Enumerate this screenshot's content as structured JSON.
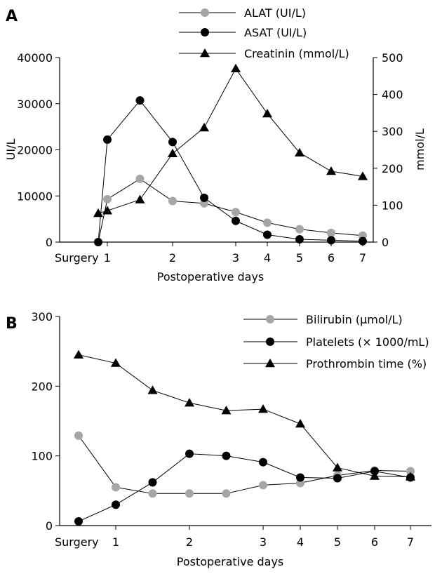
{
  "chart_data": [
    {
      "panel": "A",
      "type": "line",
      "x_tick_labels": [
        "Surgery",
        "1",
        "2",
        "3",
        "4",
        "5",
        "6",
        "7"
      ],
      "xlabel": "Postoperative days",
      "ylabel_left": "UI/L",
      "ylabel_right": "mmol/L",
      "ylim_left": [
        0,
        40000
      ],
      "ylim_right": [
        0,
        500
      ],
      "yticks_left": [
        "0",
        "10000",
        "20000",
        "30000",
        "40000"
      ],
      "yticks_right": [
        "0",
        "100",
        "200",
        "300",
        "400",
        "500"
      ],
      "legend_position": "top",
      "series": [
        {
          "name": "ALAT (UI/L)",
          "axis": "left",
          "marker": "circle",
          "color": "#a6a6a6",
          "x": [
            0,
            1,
            1.5,
            2,
            2.5,
            3,
            4,
            5,
            6,
            7
          ],
          "y": [
            0,
            9300,
            13700,
            8900,
            8400,
            6500,
            4200,
            2800,
            2000,
            1400
          ]
        },
        {
          "name": "ASAT (UI/L)",
          "axis": "left",
          "marker": "circle",
          "color": "#000000",
          "x": [
            0,
            1,
            1.5,
            2,
            2.5,
            3,
            4,
            5,
            6,
            7
          ],
          "y": [
            0,
            22200,
            30700,
            21700,
            9600,
            4600,
            1600,
            600,
            400,
            200
          ]
        },
        {
          "name": "Creatinin (mmol/L)",
          "axis": "right",
          "marker": "triangle",
          "color": "#000000",
          "x": [
            0,
            1,
            1.5,
            2,
            2.5,
            3,
            4,
            5,
            6,
            7
          ],
          "y": [
            78,
            85,
            115,
            240,
            310,
            470,
            348,
            242,
            192,
            178
          ]
        }
      ]
    },
    {
      "panel": "B",
      "type": "line",
      "x_tick_labels": [
        "Surgery",
        "1",
        "2",
        "3",
        "4",
        "5",
        "6",
        "7"
      ],
      "xlabel": "Postoperative days",
      "ylabel": "",
      "ylim": [
        0,
        300
      ],
      "yticks": [
        "0",
        "100",
        "200",
        "300"
      ],
      "legend_position": "top-right",
      "series": [
        {
          "name": "Bilirubin (μmol/L)",
          "marker": "circle",
          "color": "#a6a6a6",
          "x": [
            0,
            1,
            1.5,
            2,
            2.5,
            3,
            4,
            5,
            6,
            7
          ],
          "y": [
            129,
            55,
            46,
            46,
            46,
            58,
            61,
            72,
            79,
            78
          ]
        },
        {
          "name": "Platelets (× 1000/mL)",
          "marker": "circle",
          "color": "#000000",
          "x": [
            0,
            1,
            1.5,
            2,
            2.5,
            3,
            4,
            5,
            6,
            7
          ],
          "y": [
            6,
            30,
            62,
            103,
            100,
            91,
            69,
            68,
            78,
            69
          ]
        },
        {
          "name": "Prothrombin time (%)",
          "marker": "triangle",
          "color": "#000000",
          "x": [
            0,
            1,
            1.5,
            2,
            2.5,
            3,
            4,
            5,
            6,
            7
          ],
          "y": [
            245,
            233,
            194,
            176,
            165,
            167,
            146,
            83,
            71,
            70
          ]
        }
      ]
    }
  ]
}
